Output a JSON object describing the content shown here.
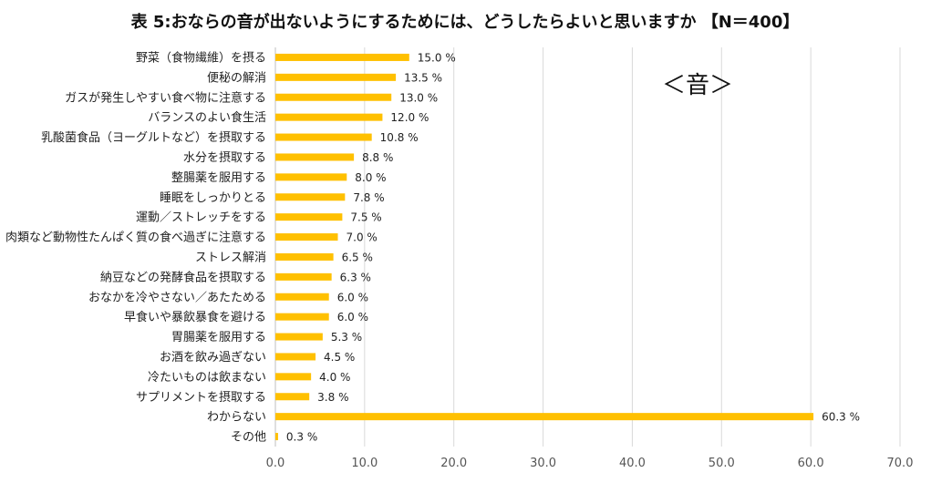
{
  "chart_data": {
    "type": "bar",
    "orientation": "horizontal",
    "title": "表 5:おならの音が出ないようにするためには、どうしたらよいと思いますか 【N＝400】",
    "annotation": "＜音＞",
    "categories": [
      "野菜（食物繊維）を摂る",
      "便秘の解消",
      "ガスが発生しやすい食べ物に注意する",
      "バランスのよい食生活",
      "乳酸菌食品（ヨーグルトなど）を摂取する",
      "水分を摂取する",
      "整腸薬を服用する",
      "睡眠をしっかりとる",
      "運動／ストレッチをする",
      "肉類など動物性たんぱく質の食べ過ぎに注意する",
      "ストレス解消",
      "納豆などの発酵食品を摂取する",
      "おなかを冷やさない／あたためる",
      "早食いや暴飲暴食を避ける",
      "胃腸薬を服用する",
      "お酒を飲み過ぎない",
      "冷たいものは飲まない",
      "サプリメントを摂取する",
      "わからない",
      "その他"
    ],
    "values": [
      15.0,
      13.5,
      13.0,
      12.0,
      10.8,
      8.8,
      8.0,
      7.8,
      7.5,
      7.0,
      6.5,
      6.3,
      6.0,
      6.0,
      5.3,
      4.5,
      4.0,
      3.8,
      60.3,
      0.3
    ],
    "value_labels": [
      "15.0 %",
      "13.5 %",
      "13.0 %",
      "12.0 %",
      "10.8 %",
      "8.8 %",
      "8.0 %",
      "7.8 %",
      "7.5 %",
      "7.0 %",
      "6.5 %",
      "6.3 %",
      "6.0 %",
      "6.0 %",
      "5.3 %",
      "4.5 %",
      "4.0 %",
      "3.8 %",
      "60.3 %",
      "0.3 %"
    ],
    "xlim": [
      0,
      70
    ],
    "xticks": [
      0,
      10,
      20,
      30,
      40,
      50,
      60,
      70
    ],
    "xtick_labels": [
      "0.0",
      "10.0",
      "20.0",
      "30.0",
      "40.0",
      "50.0",
      "60.0",
      "70.0"
    ],
    "bar_color": "#FFC000",
    "grid": true
  }
}
